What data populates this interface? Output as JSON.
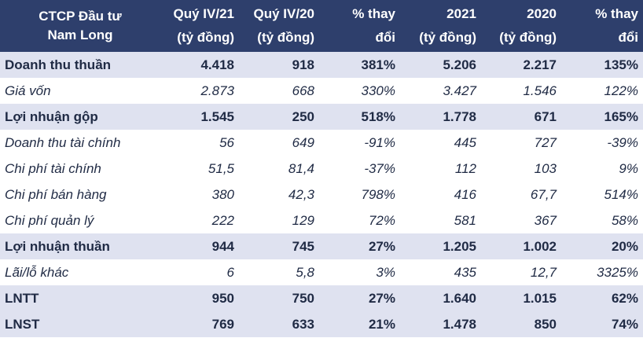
{
  "table": {
    "headers": [
      [
        "CTCP Đầu tư",
        "Nam Long"
      ],
      [
        "Quý IV/21",
        "(tỷ đồng)"
      ],
      [
        "Quý IV/20",
        "(tỷ đồng)"
      ],
      [
        "% thay",
        "đổi"
      ],
      [
        "2021",
        "(tỷ đồng)"
      ],
      [
        "2020",
        "(tỷ đồng)"
      ],
      [
        "% thay",
        "đổi"
      ]
    ],
    "header_bg": "#2e3f6c",
    "highlight_row_bg": "#dfe2f0",
    "rows": [
      {
        "style": "bold",
        "cells": [
          "Doanh thu thuần",
          "4.418",
          "918",
          "381%",
          "5.206",
          "2.217",
          "135%"
        ]
      },
      {
        "style": "italic",
        "cells": [
          "Giá vốn",
          "2.873",
          "668",
          "330%",
          "3.427",
          "1.546",
          "122%"
        ]
      },
      {
        "style": "bold",
        "cells": [
          "Lợi nhuận gộp",
          "1.545",
          "250",
          "518%",
          "1.778",
          "671",
          "165%"
        ]
      },
      {
        "style": "italic",
        "cells": [
          "Doanh thu tài chính",
          "56",
          "649",
          "-91%",
          "445",
          "727",
          "-39%"
        ]
      },
      {
        "style": "italic",
        "cells": [
          "Chi phí tài chính",
          "51,5",
          "81,4",
          "-37%",
          "112",
          "103",
          "9%"
        ]
      },
      {
        "style": "italic",
        "cells": [
          "Chi phí bán hàng",
          "380",
          "42,3",
          "798%",
          "416",
          "67,7",
          "514%"
        ]
      },
      {
        "style": "italic",
        "cells": [
          "Chi phí quản lý",
          "222",
          "129",
          "72%",
          "581",
          "367",
          "58%"
        ]
      },
      {
        "style": "bold",
        "cells": [
          "Lợi nhuận thuần",
          "944",
          "745",
          "27%",
          "1.205",
          "1.002",
          "20%"
        ]
      },
      {
        "style": "italic",
        "cells": [
          "Lãi/lỗ khác",
          "6",
          "5,8",
          "3%",
          "435",
          "12,7",
          "3325%"
        ]
      },
      {
        "style": "bold",
        "cells": [
          "LNTT",
          "950",
          "750",
          "27%",
          "1.640",
          "1.015",
          "62%"
        ]
      },
      {
        "style": "bold",
        "cells": [
          "LNST",
          "769",
          "633",
          "21%",
          "1.478",
          "850",
          "74%"
        ]
      }
    ]
  }
}
